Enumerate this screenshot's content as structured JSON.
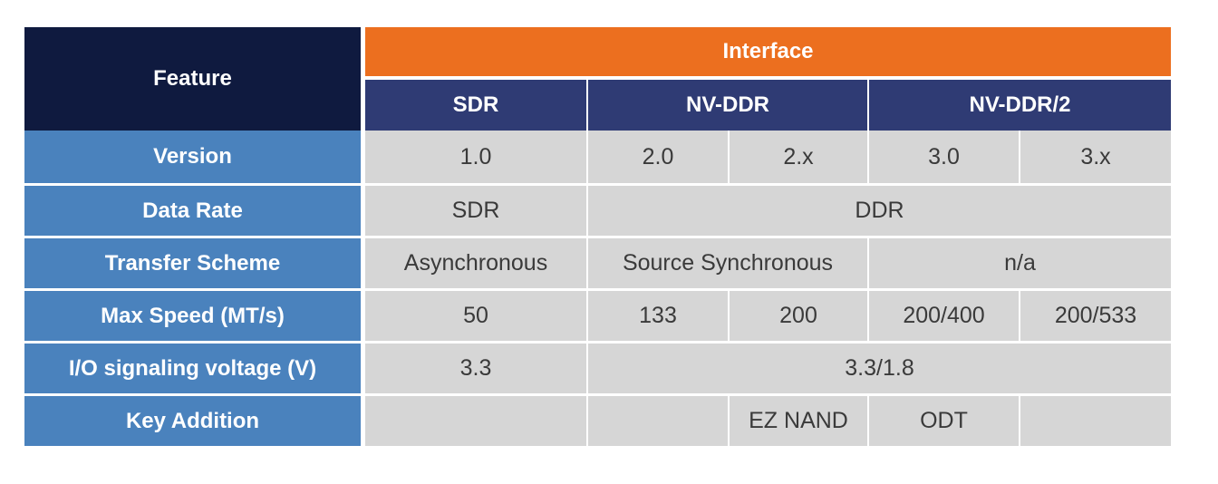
{
  "header": {
    "feature": "Feature",
    "interface": "Interface",
    "sdr": "SDR",
    "nvddr": "NV-DDR",
    "nvddr2": "NV-DDR/2"
  },
  "rows": {
    "version": {
      "label": "Version",
      "sdr": "1.0",
      "nvddr_a": "2.0",
      "nvddr_b": "2.x",
      "nvddr2_a": "3.0",
      "nvddr2_b": "3.x"
    },
    "data_rate": {
      "label": "Data Rate",
      "sdr": "SDR",
      "rest": "DDR"
    },
    "transfer_scheme": {
      "label": "Transfer Scheme",
      "sdr": "Asynchronous",
      "nvddr": "Source Synchronous",
      "nvddr2": "n/a"
    },
    "max_speed": {
      "label": "Max Speed (MT/s)",
      "sdr": "50",
      "nvddr_a": "133",
      "nvddr_b": "200",
      "nvddr2_a": "200/400",
      "nvddr2_b": "200/533"
    },
    "io_voltage": {
      "label": "I/O signaling voltage (V)",
      "sdr": "3.3",
      "rest": "3.3/1.8"
    },
    "key_addition": {
      "label": "Key Addition",
      "sdr": "",
      "nvddr_a": "",
      "nvddr_b": "EZ NAND",
      "nvddr2_a": "ODT",
      "nvddr2_b": ""
    }
  }
}
